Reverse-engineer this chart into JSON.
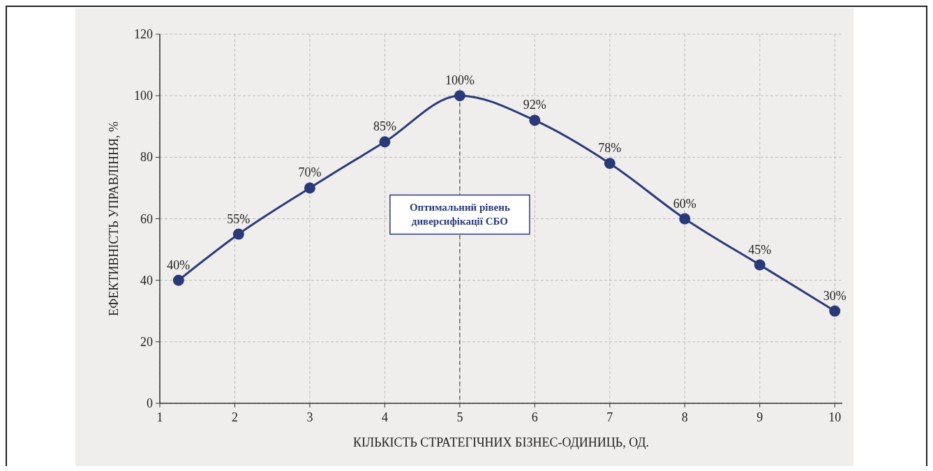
{
  "chart_data": {
    "type": "line",
    "xlabel": "КІЛЬКІСТЬ СТРАТЕГІЧНИХ БІЗНЕС-ОДИНИЦЬ, ОД.",
    "ylabel": "ЕФЕКТИВНІСТЬ УПРАВЛІННЯ, %",
    "x": [
      1.25,
      2.05,
      3,
      4,
      5,
      6,
      7,
      8,
      9,
      10
    ],
    "series": [
      {
        "color": "#2a3a78",
        "values": [
          40,
          55,
          70,
          85,
          100,
          92,
          78,
          60,
          45,
          30
        ],
        "value_labels": [
          "40%",
          "55%",
          "70%",
          "85%",
          "100%",
          "92%",
          "78%",
          "60%",
          "45%",
          "30%"
        ]
      }
    ],
    "xlim": [
      1,
      10.1
    ],
    "xticks": [
      1,
      2,
      3,
      4,
      5,
      6,
      7,
      8,
      9,
      10
    ],
    "ylim": [
      0,
      120
    ],
    "yticks": [
      0,
      20,
      40,
      60,
      80,
      100,
      120
    ],
    "ref_lines": [
      {
        "axis": "x",
        "value": 5,
        "label": "Оптимальний рівень\nдиверсифікації СБО",
        "line_style": "dashed"
      }
    ],
    "grid": true,
    "marker": "circle",
    "line_style": "solid"
  }
}
